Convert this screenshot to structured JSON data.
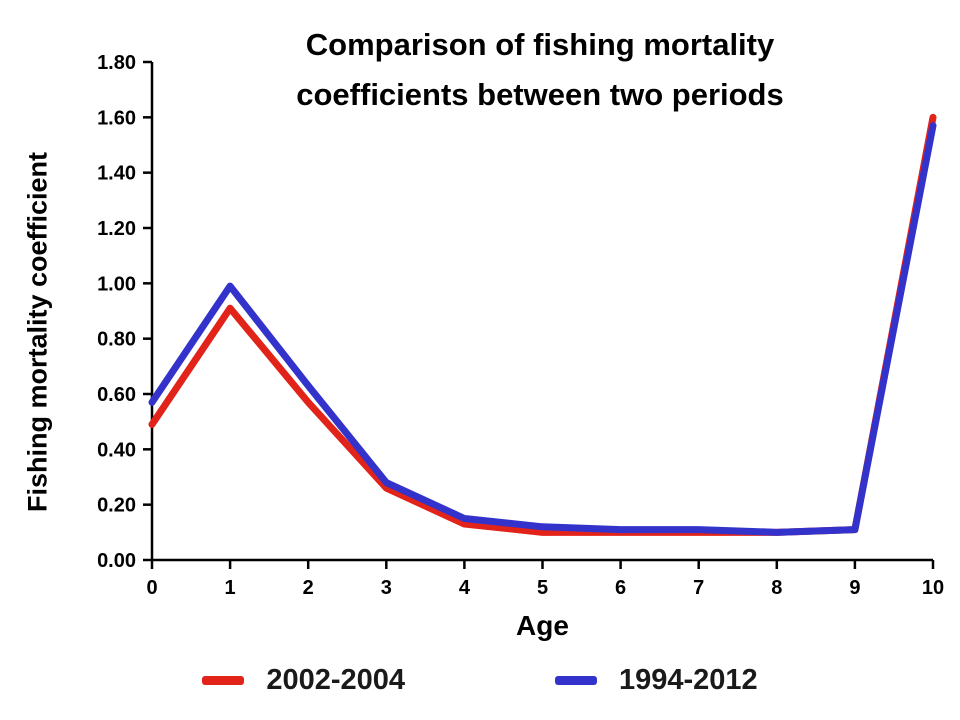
{
  "chart_data": {
    "type": "line",
    "title": "Comparison of fishing mortality coefficients between two periods",
    "title_lines": [
      "Comparison of fishing mortality",
      "coefficients between two periods"
    ],
    "xlabel": "Age",
    "ylabel": "Fishing mortality coefficient",
    "x": [
      0,
      1,
      2,
      3,
      4,
      5,
      6,
      7,
      8,
      9,
      10
    ],
    "x_ticks": [
      0,
      1,
      2,
      3,
      4,
      5,
      6,
      7,
      8,
      9,
      10
    ],
    "y_ticks": [
      0.0,
      0.2,
      0.4,
      0.6,
      0.8,
      1.0,
      1.2,
      1.4,
      1.6,
      1.8
    ],
    "xlim": [
      0,
      10
    ],
    "ylim": [
      0,
      1.8
    ],
    "grid": false,
    "legend_position": "bottom",
    "series": [
      {
        "name": "2002-2004",
        "color": "#e2231a",
        "values": [
          0.49,
          0.91,
          0.57,
          0.26,
          0.13,
          0.1,
          0.1,
          0.1,
          0.1,
          0.11,
          1.6
        ]
      },
      {
        "name": "1994-2012",
        "color": "#3333cc",
        "values": [
          0.57,
          0.99,
          0.63,
          0.28,
          0.15,
          0.12,
          0.11,
          0.11,
          0.1,
          0.11,
          1.57
        ]
      }
    ]
  }
}
